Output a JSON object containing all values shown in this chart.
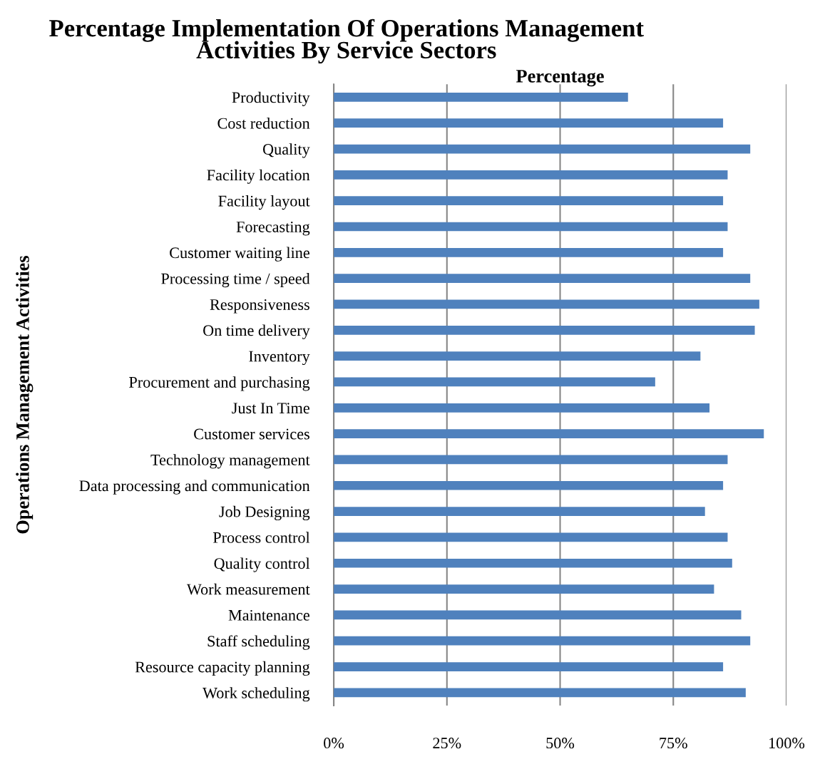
{
  "chart_data": {
    "type": "bar",
    "orientation": "horizontal",
    "title": "Percentage Implementation Of Operations Management\nActivities By Service Sectors",
    "xlabel": "Percentage",
    "ylabel": "Operations Management Activities",
    "categories": [
      "Productivity",
      "Cost reduction",
      "Quality",
      "Facility location",
      "Facility layout",
      "Forecasting",
      "Customer waiting line",
      "Processing time / speed",
      "Responsiveness",
      "On time delivery",
      "Inventory",
      "Procurement and purchasing",
      "Just In Time",
      "Customer services",
      "Technology management",
      "Data processing and communication",
      "Job Designing",
      "Process control",
      "Quality control",
      "Work measurement",
      "Maintenance",
      "Staff scheduling",
      "Resource capacity planning",
      "Work scheduling"
    ],
    "values": [
      65,
      86,
      92,
      87,
      86,
      87,
      86,
      92,
      94,
      93,
      81,
      71,
      83,
      95,
      87,
      86,
      82,
      87,
      88,
      84,
      90,
      92,
      86,
      91
    ],
    "color": "#4f81bd",
    "xlim": [
      0,
      100
    ],
    "xticks": [
      {
        "value": 0,
        "label": "0%"
      },
      {
        "value": 25,
        "label": "25%"
      },
      {
        "value": 50,
        "label": "50%"
      },
      {
        "value": 75,
        "label": "75%"
      },
      {
        "value": 100,
        "label": "100%"
      }
    ],
    "grid": "x",
    "legend": false
  }
}
